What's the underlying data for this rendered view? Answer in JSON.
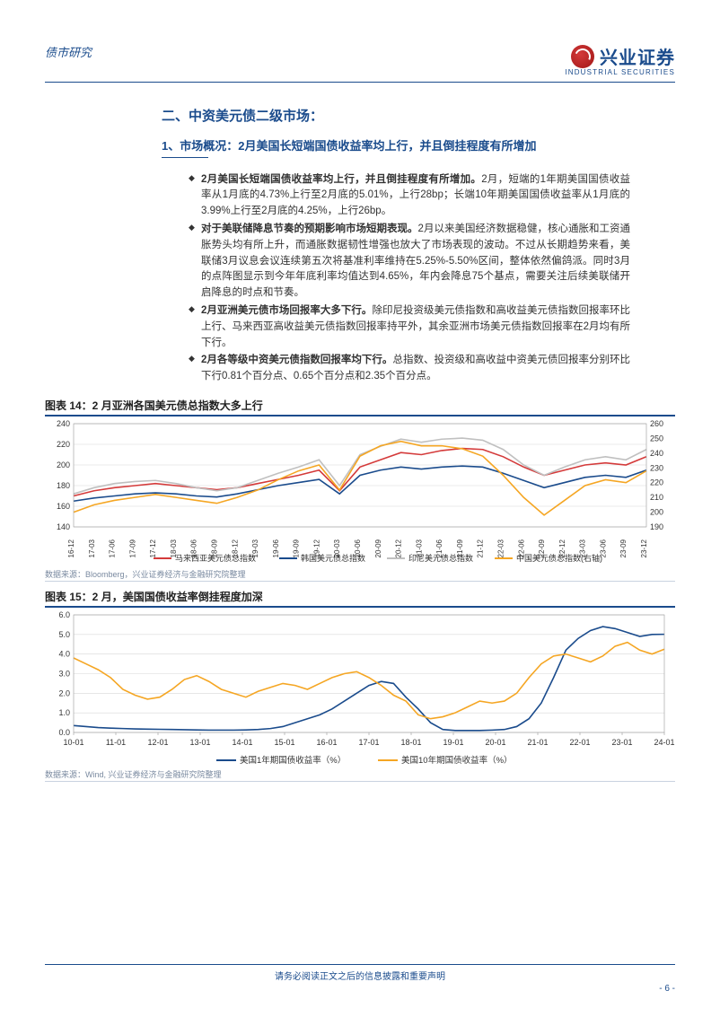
{
  "header": {
    "category": "债市研究",
    "brand_cn": "兴业证券",
    "brand_en": "INDUSTRIAL SECURITIES"
  },
  "section_title": "二、中资美元债二级市场：",
  "subsection_title": "1、市场概况：2月美国长短端国债收益率均上行，并且倒挂程度有所增加",
  "bullets": [
    {
      "bold": "2月美国长短端国债收益率均上行，并且倒挂程度有所增加。",
      "text": "2月，短端的1年期美国国债收益率从1月底的4.73%上行至2月底的5.01%，上行28bp；长端10年期美国国债收益率从1月底的3.99%上行至2月底的4.25%，上行26bp。"
    },
    {
      "bold": "对于美联储降息节奏的预期影响市场短期表现。",
      "text": "2月以来美国经济数据稳健，核心通胀和工资通胀势头均有所上升，而通胀数据韧性增强也放大了市场表现的波动。不过从长期趋势来看，美联储3月议息会议连续第五次将基准利率维持在5.25%-5.50%区间，整体依然偏鸽派。同时3月的点阵图显示到今年年底利率均值达到4.65%，年内会降息75个基点，需要关注后续美联储开启降息的时点和节奏。"
    },
    {
      "bold": "2月亚洲美元债市场回报率大多下行。",
      "text": "除印尼投资级美元债指数和高收益美元债指数回报率环比上行、马来西亚高收益美元债指数回报率持平外，其余亚洲市场美元债指数回报率在2月均有所下行。"
    },
    {
      "bold": "2月各等级中资美元债指数回报率均下行。",
      "text": "总指数、投资级和高收益中资美元债回报率分别环比下行0.81个百分点、0.65个百分点和2.35个百分点。"
    }
  ],
  "chart14": {
    "title": "图表 14：2 月亚洲各国美元债总指数大多上行",
    "type": "line",
    "xlabels": [
      "16-12",
      "17-03",
      "17-06",
      "17-09",
      "17-12",
      "18-03",
      "18-06",
      "18-09",
      "18-12",
      "19-03",
      "19-06",
      "19-09",
      "19-12",
      "20-03",
      "20-06",
      "20-09",
      "20-12",
      "21-03",
      "21-06",
      "21-09",
      "21-12",
      "22-03",
      "22-06",
      "22-09",
      "22-12",
      "23-03",
      "23-06",
      "23-09",
      "23-12"
    ],
    "y_left": {
      "min": 140,
      "max": 240,
      "step": 20
    },
    "y_right": {
      "min": 190,
      "max": 260,
      "step": 10
    },
    "series": [
      {
        "name": "马来西亚美元债总指数",
        "color": "#d43a3a",
        "axis": "left",
        "values": [
          170,
          175,
          178,
          180,
          182,
          180,
          178,
          176,
          178,
          182,
          186,
          190,
          195,
          175,
          198,
          205,
          212,
          210,
          214,
          216,
          215,
          208,
          198,
          190,
          195,
          200,
          202,
          200,
          208
        ]
      },
      {
        "name": "韩国美元债总指数",
        "color": "#1a4b8c",
        "axis": "left",
        "values": [
          165,
          168,
          170,
          172,
          173,
          172,
          170,
          169,
          172,
          176,
          180,
          183,
          186,
          172,
          190,
          195,
          198,
          196,
          198,
          199,
          198,
          192,
          185,
          178,
          183,
          188,
          190,
          188,
          195
        ]
      },
      {
        "name": "印尼美元债总指数",
        "color": "#c0c0c0",
        "axis": "left",
        "values": [
          172,
          178,
          182,
          184,
          185,
          182,
          178,
          175,
          178,
          185,
          192,
          198,
          205,
          180,
          210,
          218,
          225,
          222,
          225,
          226,
          224,
          215,
          200,
          190,
          198,
          205,
          208,
          205,
          215
        ]
      },
      {
        "name": "中国美元债总指数(右轴)",
        "color": "#f5a623",
        "axis": "right",
        "values": [
          200,
          205,
          208,
          210,
          212,
          210,
          208,
          206,
          210,
          215,
          222,
          228,
          232,
          215,
          238,
          245,
          248,
          245,
          245,
          243,
          238,
          225,
          210,
          198,
          208,
          218,
          222,
          220,
          228
        ]
      }
    ],
    "legend_labels": [
      "马来西亚美元债总指数",
      "韩国美元债总指数",
      "印尼美元债总指数",
      "中国美元债总指数(右轴)"
    ],
    "legend_colors": [
      "#d43a3a",
      "#1a4b8c",
      "#c0c0c0",
      "#f5a623"
    ],
    "source": "数据来源：Bloomberg，兴业证券经济与金融研究院整理"
  },
  "chart15": {
    "title": "图表 15：2 月，美国国债收益率倒挂程度加深",
    "type": "line",
    "xlabels": [
      "10-01",
      "11-01",
      "12-01",
      "13-01",
      "14-01",
      "15-01",
      "16-01",
      "17-01",
      "18-01",
      "19-01",
      "20-01",
      "21-01",
      "22-01",
      "23-01",
      "24-01"
    ],
    "y": {
      "min": 0.0,
      "max": 6.0,
      "step": 1.0
    },
    "series": [
      {
        "name": "美国1年期国债收益率（%）",
        "color": "#1a4b8c",
        "values_dense": [
          0.35,
          0.3,
          0.25,
          0.22,
          0.2,
          0.18,
          0.17,
          0.16,
          0.15,
          0.14,
          0.13,
          0.12,
          0.12,
          0.12,
          0.13,
          0.15,
          0.2,
          0.3,
          0.5,
          0.7,
          0.9,
          1.2,
          1.6,
          2.0,
          2.4,
          2.6,
          2.5,
          1.8,
          1.2,
          0.5,
          0.15,
          0.1,
          0.1,
          0.1,
          0.12,
          0.15,
          0.3,
          0.7,
          1.5,
          2.8,
          4.2,
          4.8,
          5.2,
          5.4,
          5.3,
          5.1,
          4.9,
          5.0,
          5.01
        ]
      },
      {
        "name": "美国10年期国债收益率（%）",
        "color": "#f5a623",
        "values_dense": [
          3.8,
          3.5,
          3.2,
          2.8,
          2.2,
          1.9,
          1.7,
          1.8,
          2.2,
          2.7,
          2.9,
          2.6,
          2.2,
          2.0,
          1.8,
          2.1,
          2.3,
          2.5,
          2.4,
          2.2,
          2.5,
          2.8,
          3.0,
          3.1,
          2.8,
          2.4,
          1.9,
          1.6,
          0.9,
          0.7,
          0.8,
          1.0,
          1.3,
          1.6,
          1.5,
          1.6,
          2.0,
          2.8,
          3.5,
          3.9,
          4.0,
          3.8,
          3.6,
          3.9,
          4.4,
          4.6,
          4.2,
          4.0,
          4.25
        ]
      }
    ],
    "legend_labels": [
      "美国1年期国债收益率（%）",
      "美国10年期国债收益率（%）"
    ],
    "legend_colors": [
      "#1a4b8c",
      "#f5a623"
    ],
    "source": "数据来源：Wind, 兴业证券经济与金融研究院整理"
  },
  "footer": {
    "disclaimer": "请务必阅读正文之后的信息披露和重要声明",
    "page": "- 6 -"
  },
  "colors": {
    "brand": "#1a4b8c",
    "accent": "#d43a3a",
    "grid": "#d8d8d8",
    "text": "#333333"
  }
}
